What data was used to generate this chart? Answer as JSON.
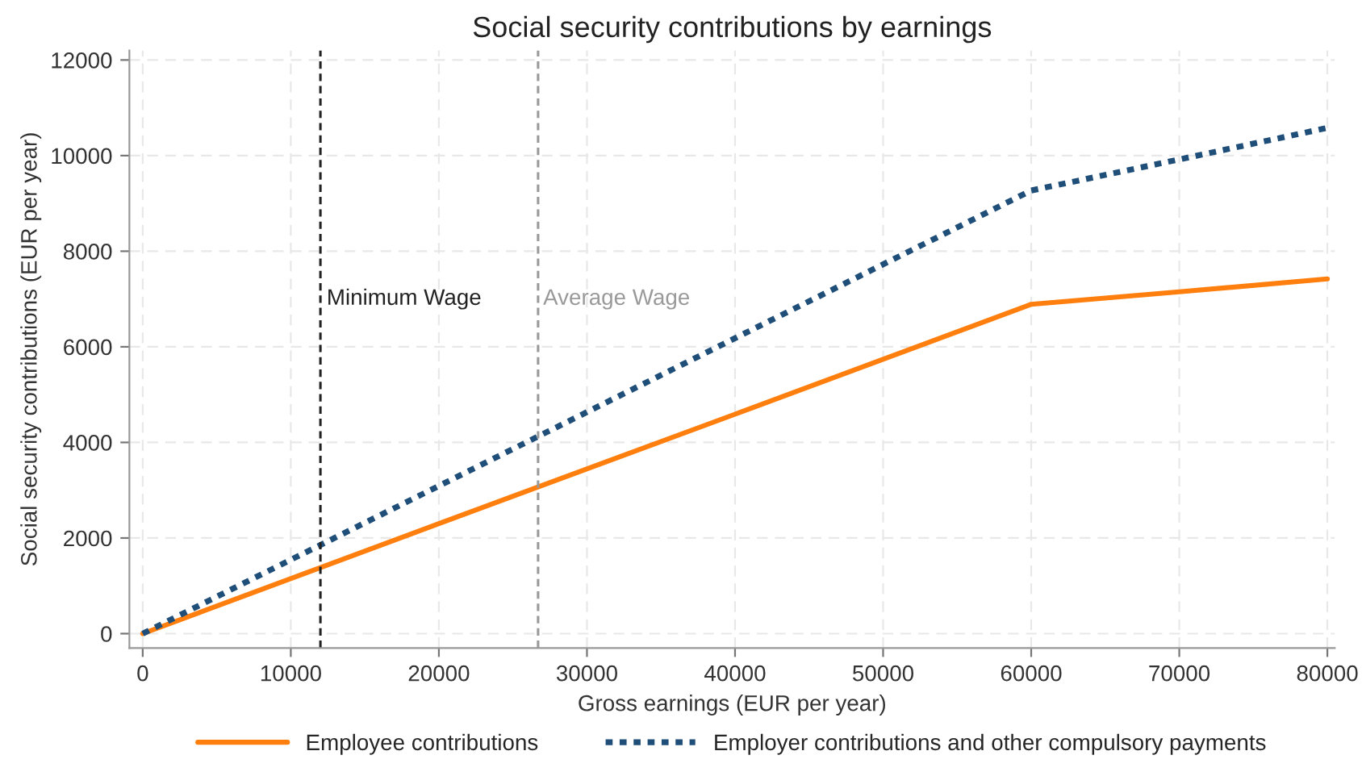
{
  "chart_data": {
    "type": "line",
    "title": "Social security contributions by earnings",
    "xlabel": "Gross earnings (EUR per year)",
    "ylabel": "Social security contributions (EUR per year)",
    "x": [
      0,
      20000,
      40000,
      60000,
      70000,
      80000
    ],
    "series": [
      {
        "name": "Employee contributions",
        "color": "#ff7f0e",
        "line_style": "solid",
        "values": [
          0,
          2300,
          4590,
          6890,
          7150,
          7420
        ]
      },
      {
        "name": "Employer contributions and other compulsory payments",
        "color": "#1f4e79",
        "line_style": "dotted",
        "values": [
          0,
          3090,
          6180,
          9270,
          9920,
          10580
        ]
      }
    ],
    "xlim": [
      -900,
      80500
    ],
    "ylim": [
      -300,
      12200
    ],
    "xticks": [
      0,
      10000,
      20000,
      30000,
      40000,
      50000,
      60000,
      70000,
      80000
    ],
    "yticks": [
      0,
      2000,
      4000,
      6000,
      8000,
      10000,
      12000
    ],
    "ref_lines": [
      {
        "axis": "x",
        "value": 12000,
        "label": "Minimum Wage",
        "color": "#222222",
        "line_style": "dashed"
      },
      {
        "axis": "x",
        "value": 26700,
        "label": "Average Wage",
        "color": "#999999",
        "line_style": "dashed"
      }
    ],
    "grid": true,
    "legend": "bottom",
    "marker": "none"
  }
}
